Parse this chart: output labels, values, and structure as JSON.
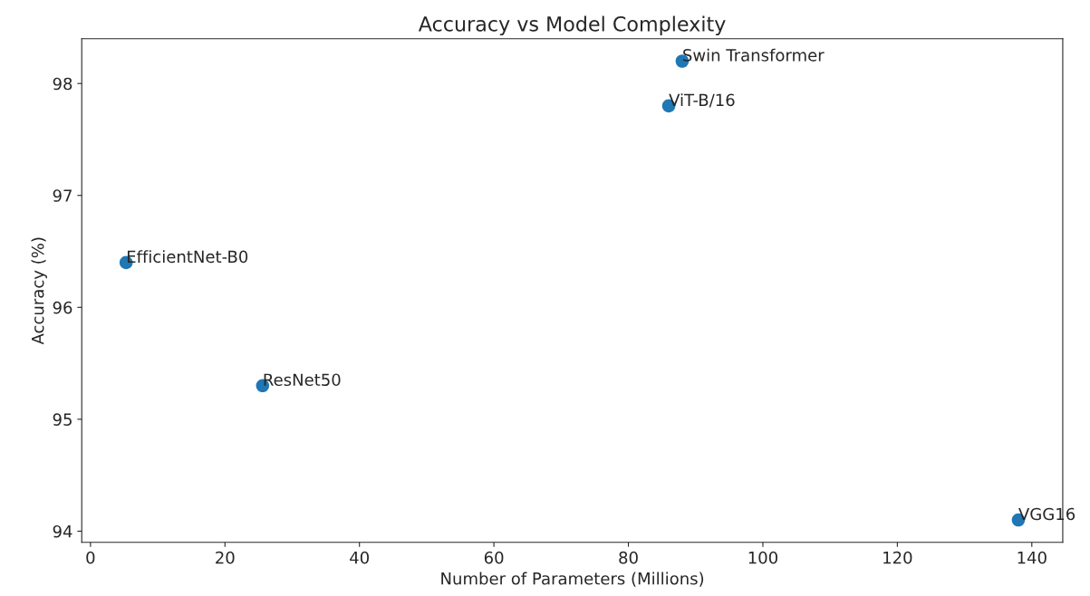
{
  "chart_data": {
    "type": "scatter",
    "title": "Accuracy vs Model Complexity",
    "xlabel": "Number of Parameters (Millions)",
    "ylabel": "Accuracy (%)",
    "x": [
      5.3,
      25.6,
      86,
      88,
      138
    ],
    "values": [
      96.4,
      95.3,
      97.8,
      98.2,
      94.1
    ],
    "color": "#1f77b4",
    "marker": "circle",
    "grid": false,
    "xlim": [
      -1.3,
      144.6
    ],
    "xticks": [
      0,
      20,
      40,
      60,
      80,
      100,
      120,
      140
    ],
    "ylim": [
      93.9,
      98.4
    ],
    "yticks": [
      94,
      95,
      96,
      97,
      98
    ],
    "annotations": [
      {
        "text": "EfficientNet-B0",
        "x": 5.3,
        "y": 96.4
      },
      {
        "text": "ResNet50",
        "x": 25.6,
        "y": 95.3
      },
      {
        "text": "ViT-B/16",
        "x": 86,
        "y": 97.8
      },
      {
        "text": "Swin Transformer",
        "x": 88,
        "y": 98.2
      },
      {
        "text": "VGG16",
        "x": 138,
        "y": 94.1
      }
    ]
  }
}
